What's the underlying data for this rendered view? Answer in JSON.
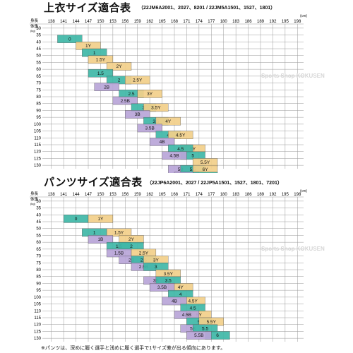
{
  "chart1": {
    "title": "上衣サイズ適合表",
    "subtitle": "（22JM6A2001、2027、8201 / 22JM5A1501、1527、1801）",
    "unit": "(cm)",
    "corner_top": "身長",
    "corner_bottom": "体重",
    "weight_unit": "(kg)",
    "heights": [
      "138",
      "141",
      "144",
      "147",
      "150",
      "153",
      "156",
      "159",
      "162",
      "165",
      "168",
      "171",
      "174",
      "177",
      "180",
      "183",
      "186",
      "189",
      "192",
      "195",
      "198"
    ],
    "weights": [
      "30",
      "35",
      "40",
      "45",
      "50",
      "55",
      "60",
      "65",
      "70",
      "75",
      "80",
      "85",
      "90",
      "95",
      "100",
      "105",
      "110",
      "115",
      "120",
      "125",
      "130"
    ],
    "sizes": [
      {
        "label": "0",
        "c": 3,
        "r": 2,
        "type": "blue"
      },
      {
        "label": "1Y",
        "c": 6,
        "r": 3,
        "type": "yellow"
      },
      {
        "label": "1",
        "c": 7,
        "r": 4,
        "type": "blue"
      },
      {
        "label": "1.5Y",
        "c": 8,
        "r": 5,
        "type": "yellow"
      },
      {
        "label": "2Y",
        "c": 11,
        "r": 6,
        "type": "yellow"
      },
      {
        "label": "1.5",
        "c": 8,
        "r": 7,
        "type": "blue"
      },
      {
        "label": "2",
        "c": 11,
        "r": 8,
        "type": "blue"
      },
      {
        "label": "2.5Y",
        "c": 14,
        "r": 8,
        "type": "yellow"
      },
      {
        "label": "2B",
        "c": 9,
        "r": 9,
        "type": "purple"
      },
      {
        "label": "2.5",
        "c": 13,
        "r": 10,
        "type": "blue"
      },
      {
        "label": "3Y",
        "c": 16,
        "r": 10,
        "type": "yellow"
      },
      {
        "label": "2.5B",
        "c": 12,
        "r": 11,
        "type": "purple"
      },
      {
        "label": "3",
        "c": 15,
        "r": 12,
        "type": "blue"
      },
      {
        "label": "3.5Y",
        "c": 17,
        "r": 12,
        "type": "yellow"
      },
      {
        "label": "3B",
        "c": 14,
        "r": 13,
        "type": "purple"
      },
      {
        "label": "3.5",
        "c": 17,
        "r": 14,
        "type": "blue"
      },
      {
        "label": "4Y",
        "c": 19,
        "r": 14,
        "type": "yellow"
      },
      {
        "label": "3.5B",
        "c": 16,
        "r": 15,
        "type": "purple"
      },
      {
        "label": "4",
        "c": 19,
        "r": 16,
        "type": "blue"
      },
      {
        "label": "4.5Y",
        "c": 21,
        "r": 16,
        "type": "yellow"
      },
      {
        "label": "4B",
        "c": 18,
        "r": 17,
        "type": "purple"
      },
      {
        "label": "5Y",
        "c": 23,
        "r": 18,
        "type": "yellow"
      },
      {
        "label": "4.5",
        "c": 21,
        "r": 18,
        "type": "blue"
      },
      {
        "label": "5",
        "c": 23,
        "r": 19,
        "type": "blue"
      },
      {
        "label": "4.5B",
        "c": 20,
        "r": 19,
        "type": "purple"
      },
      {
        "label": "5.5Y",
        "c": 25,
        "r": 20,
        "type": "yellow"
      },
      {
        "label": "5B",
        "c": 21,
        "r": 21,
        "type": "purple"
      },
      {
        "label": "5.5",
        "c": 23,
        "r": 21,
        "type": "blue"
      },
      {
        "label": "6Y",
        "c": 25,
        "r": 21,
        "type": "yellow"
      },
      {
        "label": "5.5B",
        "c": 22,
        "r": 22,
        "type": "purple"
      },
      {
        "label": "6",
        "c": 25,
        "r": 22,
        "type": "blue"
      }
    ]
  },
  "chart2": {
    "title": "パンツサイズ適合表",
    "subtitle": "（22JP6A2001、2027 / 22JP5A1501、1527、1801、7201）",
    "unit": "(cm)",
    "corner_top": "身長",
    "corner_bottom": "体重",
    "weight_unit": "(kg)",
    "heights": [
      "138",
      "141",
      "144",
      "147",
      "150",
      "153",
      "156",
      "159",
      "162",
      "165",
      "168",
      "171",
      "174",
      "177",
      "180",
      "183",
      "186",
      "189",
      "192",
      "195",
      "198"
    ],
    "weights": [
      "30",
      "35",
      "40",
      "45",
      "50",
      "55",
      "60",
      "65",
      "70",
      "75",
      "80",
      "85",
      "90",
      "95",
      "100",
      "105",
      "110",
      "115",
      "120",
      "125",
      "130"
    ],
    "sizes": [
      {
        "label": "0",
        "c": 4,
        "r": 3,
        "type": "blue"
      },
      {
        "label": "1Y",
        "c": 8,
        "r": 3,
        "type": "yellow"
      },
      {
        "label": "1",
        "c": 7,
        "r": 5,
        "type": "blue"
      },
      {
        "label": "1.5Y",
        "c": 11,
        "r": 5,
        "type": "yellow"
      },
      {
        "label": "1B",
        "c": 8,
        "r": 6,
        "type": "purple"
      },
      {
        "label": "2Y",
        "c": 13,
        "r": 6,
        "type": "yellow"
      },
      {
        "label": "1.5",
        "c": 11,
        "r": 7,
        "type": "blue"
      },
      {
        "label": "2",
        "c": 13,
        "r": 7,
        "type": "blue"
      },
      {
        "label": "1.5B",
        "c": 11,
        "r": 8,
        "type": "purple"
      },
      {
        "label": "2.5Y",
        "c": 15,
        "r": 8,
        "type": "yellow"
      },
      {
        "label": "2B",
        "c": 13,
        "r": 9,
        "type": "purple"
      },
      {
        "label": "2.5",
        "c": 15,
        "r": 9,
        "type": "blue"
      },
      {
        "label": "3Y",
        "c": 17,
        "r": 9,
        "type": "yellow"
      },
      {
        "label": "2.5B",
        "c": 15,
        "r": 10,
        "type": "purple"
      },
      {
        "label": "3",
        "c": 17,
        "r": 10,
        "type": "blue"
      },
      {
        "label": "3.5Y",
        "c": 19,
        "r": 11,
        "type": "yellow"
      },
      {
        "label": "3B",
        "c": 17,
        "r": 12,
        "type": "purple"
      },
      {
        "label": "3.5",
        "c": 19,
        "r": 12,
        "type": "blue"
      },
      {
        "label": "4Y",
        "c": 21,
        "r": 13,
        "type": "yellow"
      },
      {
        "label": "3.5B",
        "c": 18,
        "r": 13,
        "type": "purple"
      },
      {
        "label": "4",
        "c": 21,
        "r": 14,
        "type": "blue"
      },
      {
        "label": "4.5Y",
        "c": 23,
        "r": 15,
        "type": "yellow"
      },
      {
        "label": "4B",
        "c": 20,
        "r": 15,
        "type": "purple"
      },
      {
        "label": "4.5",
        "c": 23,
        "r": 16,
        "type": "blue"
      },
      {
        "label": "5Y",
        "c": 24,
        "r": 17,
        "type": "yellow"
      },
      {
        "label": "4.5B",
        "c": 22,
        "r": 17,
        "type": "purple"
      },
      {
        "label": "5",
        "c": 24,
        "r": 18,
        "type": "blue"
      },
      {
        "label": "5.5Y",
        "c": 26,
        "r": 18,
        "type": "yellow"
      },
      {
        "label": "5B",
        "c": 23,
        "r": 19,
        "type": "purple"
      },
      {
        "label": "5.5",
        "c": 25,
        "r": 19,
        "type": "blue"
      },
      {
        "label": "6",
        "c": 27,
        "r": 20,
        "type": "blue"
      },
      {
        "label": "5.5B",
        "c": 24,
        "r": 20,
        "type": "purple"
      }
    ]
  },
  "footnote": "※パンツは、深めに履く選手と浅めに履く選手で1サイズ差が出る傾向にあります。",
  "watermark": "Sports Shop KOKUSEN",
  "colors": {
    "yellow": "#f3d08a",
    "blue": "#3fb8a8",
    "purple": "#b9a5d8",
    "grid": "#9a9a9a"
  }
}
